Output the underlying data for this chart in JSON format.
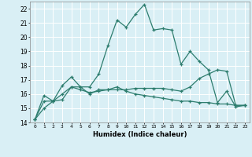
{
  "xlabel": "Humidex (Indice chaleur)",
  "x_values": [
    0,
    1,
    2,
    3,
    4,
    5,
    6,
    7,
    8,
    9,
    10,
    11,
    12,
    13,
    14,
    15,
    16,
    17,
    18,
    19,
    20,
    21,
    22,
    23
  ],
  "line1": [
    14.2,
    15.9,
    15.5,
    16.6,
    17.2,
    16.5,
    16.5,
    17.4,
    19.4,
    21.2,
    20.7,
    21.6,
    22.3,
    20.5,
    20.6,
    20.5,
    18.1,
    19.0,
    18.3,
    17.7,
    15.4,
    16.2,
    15.1,
    15.2
  ],
  "line2": [
    14.2,
    15.5,
    15.5,
    15.6,
    16.5,
    16.5,
    16.0,
    16.3,
    16.3,
    16.5,
    16.2,
    16.0,
    15.9,
    15.8,
    15.7,
    15.6,
    15.5,
    15.5,
    15.4,
    15.4,
    15.3,
    15.3,
    15.2,
    15.2
  ],
  "line3": [
    14.2,
    15.0,
    15.5,
    16.0,
    16.5,
    16.3,
    16.1,
    16.2,
    16.3,
    16.3,
    16.3,
    16.4,
    16.4,
    16.4,
    16.4,
    16.3,
    16.2,
    16.5,
    17.1,
    17.4,
    17.7,
    17.6,
    15.2,
    15.2
  ],
  "line_color": "#2d7d6e",
  "bg_color": "#d9eff5",
  "grid_color": "#ffffff",
  "ylim": [
    14,
    22.5
  ],
  "yticks": [
    14,
    15,
    16,
    17,
    18,
    19,
    20,
    21,
    22
  ],
  "xtick_labels": [
    "0",
    "1",
    "2",
    "3",
    "4",
    "5",
    "6",
    "7",
    "8",
    "9",
    "10",
    "11",
    "12",
    "13",
    "14",
    "15",
    "16",
    "17",
    "18",
    "19",
    "20",
    "21",
    "22",
    "23"
  ]
}
